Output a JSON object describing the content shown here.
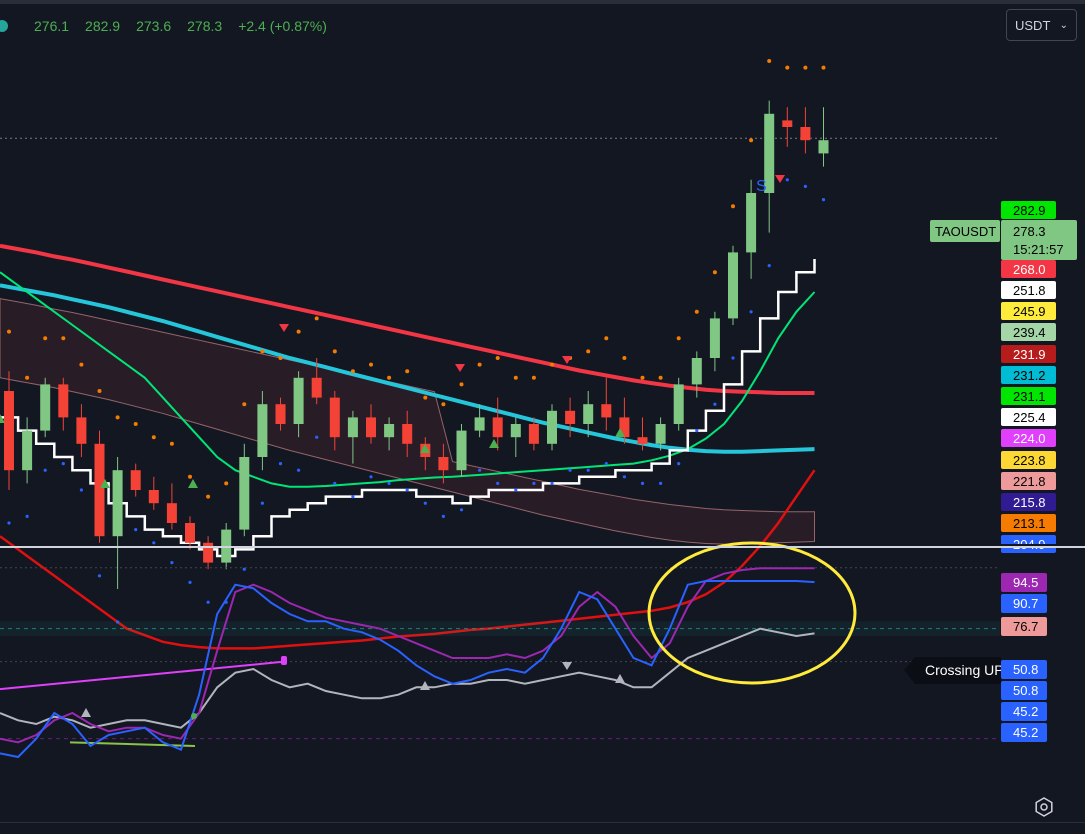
{
  "header": {
    "ohlc": [
      "276.1",
      "282.9",
      "273.6",
      "278.3",
      "+2.4 (+0.87%)"
    ],
    "currency": "USDT"
  },
  "symbol_tag": {
    "name": "TAOUSDT",
    "price": "278.3",
    "countdown": "15:21:57"
  },
  "signals": {
    "sell_letter": "S"
  },
  "crossing_label": "Crossing UP",
  "colors": {
    "background": "#131722",
    "up": "#81c784",
    "down": "#f44336",
    "ema_long": "#f23645",
    "ema_cyan": "#26c6da",
    "ema_green": "#00e676",
    "stop_white": "#ffffff",
    "band_red": "#e01010",
    "osc_blue": "#2962ff",
    "osc_purple": "#9c27b0",
    "osc_gray": "#b2b5be",
    "osc_pink": "#e8a0a0",
    "highlight": "#ffeb3b"
  },
  "price_labels": [
    {
      "text": "282.9",
      "bg": "#00e600",
      "fg": "#000000"
    },
    {
      "text": "268.0",
      "bg": "#f23645",
      "fg": "#ffffff"
    },
    {
      "text": "251.8",
      "bg": "#ffffff",
      "fg": "#000000"
    },
    {
      "text": "245.9",
      "bg": "#ffeb3b",
      "fg": "#000000"
    },
    {
      "text": "239.4",
      "bg": "#a5d6a7",
      "fg": "#000000"
    },
    {
      "text": "231.9",
      "bg": "#b71c1c",
      "fg": "#ffffff"
    },
    {
      "text": "231.2",
      "bg": "#00bcd4",
      "fg": "#000000"
    },
    {
      "text": "231.1",
      "bg": "#00e600",
      "fg": "#000000"
    },
    {
      "text": "225.4",
      "bg": "#ffffff",
      "fg": "#000000"
    },
    {
      "text": "224.0",
      "bg": "#e040fb",
      "fg": "#ffffff"
    },
    {
      "text": "223.8",
      "bg": "#fdd835",
      "fg": "#000000"
    },
    {
      "text": "221.8",
      "bg": "#ef9a9a",
      "fg": "#000000"
    },
    {
      "text": "215.8",
      "bg": "#311b92",
      "fg": "#ffffff"
    },
    {
      "text": "213.1",
      "bg": "#f57c00",
      "fg": "#000000"
    },
    {
      "text": "204.9",
      "bg": "#2962ff",
      "fg": "#ffffff"
    }
  ],
  "osc_labels": [
    {
      "text": "94.5",
      "bg": "#9c27b0",
      "fg": "#ffffff"
    },
    {
      "text": "90.7",
      "bg": "#2962ff",
      "fg": "#ffffff"
    },
    {
      "text": "76.7",
      "bg": "#ef9a9a",
      "fg": "#000000"
    },
    {
      "text": "50.8",
      "bg": "#2962ff",
      "fg": "#ffffff"
    },
    {
      "text": "50.8",
      "bg": "#2962ff",
      "fg": "#ffffff"
    },
    {
      "text": "45.2",
      "bg": "#2962ff",
      "fg": "#ffffff"
    },
    {
      "text": "45.2",
      "bg": "#2962ff",
      "fg": "#ffffff"
    }
  ],
  "chart_data": {
    "type": "candlestick",
    "title": "",
    "price_ylim": [
      200,
      300
    ],
    "oscillator_ylim": [
      40,
      100
    ],
    "candles": [
      [
        240,
        243,
        225,
        228
      ],
      [
        228,
        236,
        226,
        234
      ],
      [
        234,
        242,
        233,
        241
      ],
      [
        241,
        242,
        234,
        236
      ],
      [
        236,
        238,
        230,
        232
      ],
      [
        232,
        234,
        217,
        218
      ],
      [
        218,
        230,
        210,
        228
      ],
      [
        228,
        229,
        224,
        225
      ],
      [
        225,
        227,
        222,
        223
      ],
      [
        223,
        226,
        219,
        220
      ],
      [
        220,
        221,
        216,
        217
      ],
      [
        217,
        218,
        213,
        214
      ],
      [
        214,
        220,
        213,
        219
      ],
      [
        219,
        232,
        218,
        230
      ],
      [
        230,
        240,
        228,
        238
      ],
      [
        238,
        239,
        234,
        235
      ],
      [
        235,
        243,
        233,
        242
      ],
      [
        242,
        245,
        238,
        239
      ],
      [
        239,
        240,
        231,
        233
      ],
      [
        233,
        237,
        229,
        236
      ],
      [
        236,
        238,
        232,
        233
      ],
      [
        233,
        236,
        231,
        235
      ],
      [
        235,
        237,
        230,
        232
      ],
      [
        232,
        233,
        228,
        230
      ],
      [
        230,
        232,
        226,
        228
      ],
      [
        228,
        235,
        227,
        234
      ],
      [
        234,
        238,
        233,
        236
      ],
      [
        236,
        239,
        231,
        233
      ],
      [
        233,
        236,
        230,
        235
      ],
      [
        235,
        236,
        231,
        232
      ],
      [
        232,
        238,
        231,
        237
      ],
      [
        237,
        239,
        233,
        235
      ],
      [
        235,
        240,
        233,
        238
      ],
      [
        238,
        242,
        234,
        236
      ],
      [
        236,
        239,
        232,
        233
      ],
      [
        233,
        236,
        231,
        232
      ],
      [
        232,
        236,
        231,
        235
      ],
      [
        235,
        242,
        234,
        241
      ],
      [
        241,
        246,
        239,
        245
      ],
      [
        245,
        252,
        243,
        251
      ],
      [
        251,
        262,
        250,
        261
      ],
      [
        261,
        272,
        257,
        270
      ],
      [
        270,
        284,
        264,
        282
      ],
      [
        281,
        283,
        277,
        280
      ],
      [
        280,
        283,
        276,
        278
      ],
      [
        276,
        283,
        274,
        278
      ]
    ],
    "ema_long": [
      262,
      261.5,
      261,
      260.4,
      259.9,
      259.3,
      258.7,
      258.1,
      257.5,
      256.9,
      256.3,
      255.7,
      255.1,
      254.5,
      253.9,
      253.3,
      252.7,
      252.1,
      251.5,
      250.9,
      250.3,
      249.7,
      249.1,
      248.5,
      247.9,
      247.3,
      246.7,
      246.1,
      245.5,
      244.9,
      244.3,
      243.7,
      243.1,
      242.6,
      242.1,
      241.6,
      241.2,
      240.8,
      240.5,
      240.2,
      240,
      239.9,
      239.8,
      239.7,
      239.7,
      239.7
    ],
    "ema_cyan": [
      256,
      255.5,
      255,
      254.5,
      253.9,
      253.3,
      252.7,
      252,
      251.3,
      250.6,
      249.8,
      249,
      248.2,
      247.4,
      246.6,
      245.8,
      245,
      244.3,
      243.6,
      242.9,
      242.2,
      241.5,
      240.8,
      240.1,
      239.4,
      238.7,
      238,
      237.3,
      236.6,
      235.9,
      235.2,
      234.6,
      234,
      233.4,
      232.8,
      232.3,
      231.8,
      231.4,
      231.1,
      230.9,
      230.8,
      230.8,
      230.9,
      231,
      231.1,
      231.2
    ],
    "ema_green": [
      258,
      256,
      254,
      252,
      250,
      248,
      246,
      244,
      242,
      239,
      236,
      233,
      230,
      228,
      227,
      226,
      225.5,
      225.5,
      225.6,
      225.8,
      226,
      226.2,
      226.5,
      226.7,
      226.9,
      227,
      227.2,
      227.4,
      227.6,
      227.8,
      228,
      228.2,
      228.4,
      228.6,
      228.8,
      229,
      229.5,
      230.2,
      231.2,
      232.8,
      235,
      238.5,
      243,
      248,
      252,
      255
    ],
    "stop_line": [
      236,
      234,
      232,
      230,
      228,
      226,
      223,
      221,
      219,
      218,
      217,
      216,
      215,
      216,
      218,
      221,
      222,
      223,
      224,
      224,
      225,
      225,
      225,
      224,
      224,
      223,
      224,
      225,
      225,
      225,
      226,
      226,
      227,
      227,
      228,
      228,
      229,
      231,
      234,
      237,
      241,
      246,
      251,
      255,
      258,
      260
    ],
    "band_red": [
      218,
      216,
      214,
      212,
      210,
      208,
      206,
      204,
      203,
      202,
      201.5,
      201.2,
      201,
      201,
      201,
      201.2,
      201.4,
      201.6,
      201.8,
      202,
      202.2,
      202.5,
      202.8,
      203,
      203.2,
      203.5,
      203.8,
      204,
      204.3,
      204.6,
      204.9,
      205.2,
      205.5,
      205.8,
      206.1,
      206.4,
      206.7,
      207.2,
      208,
      209.2,
      211,
      213.5,
      216.5,
      220,
      224,
      228
    ],
    "osc_blue": [
      44,
      43,
      48,
      55,
      52,
      46,
      49,
      50,
      51,
      47,
      45,
      60,
      82,
      90,
      89,
      85,
      82,
      80,
      80,
      78,
      77,
      75,
      72,
      68,
      65,
      63,
      64,
      66,
      67,
      66,
      70,
      78,
      88,
      86,
      78,
      70,
      68,
      78,
      90,
      91,
      91,
      91,
      91,
      91,
      91,
      90.7
    ],
    "osc_purple": [
      48,
      47,
      49,
      53,
      55,
      52,
      50,
      51,
      51,
      49,
      48,
      55,
      72,
      88,
      90,
      88,
      85,
      83,
      81,
      80,
      79,
      78,
      76,
      74,
      72,
      70,
      70,
      70,
      71,
      70,
      72,
      76,
      84,
      88,
      84,
      76,
      70,
      74,
      84,
      91,
      93,
      94,
      94.5,
      94.5,
      94.5,
      94.5
    ],
    "osc_gray": [
      55,
      53,
      52,
      54,
      53,
      51,
      52,
      53,
      53,
      52,
      51,
      55,
      62,
      66,
      67,
      64,
      62,
      63,
      61,
      60,
      59,
      59,
      60,
      62,
      62,
      63,
      63,
      64,
      64,
      63,
      64,
      65,
      66,
      65,
      64,
      62,
      62,
      66,
      70,
      72,
      74,
      76,
      78,
      77,
      76,
      76.7
    ]
  }
}
